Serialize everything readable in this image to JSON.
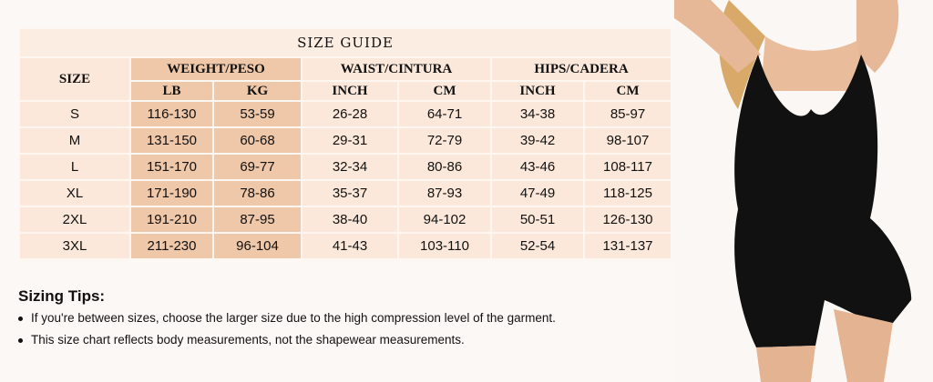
{
  "size_guide": {
    "title": "SIZE GUIDE",
    "size_header": "SIZE",
    "groups": [
      "WEIGHT/PESO",
      "WAIST/CINTURA",
      "HIPS/CADERA"
    ],
    "subheaders": [
      "LB",
      "KG",
      "INCH",
      "CM",
      "INCH",
      "CM"
    ],
    "rows": [
      [
        "S",
        "116-130",
        "53-59",
        "26-28",
        "64-71",
        "34-38",
        "85-97"
      ],
      [
        "M",
        "131-150",
        "60-68",
        "29-31",
        "72-79",
        "39-42",
        "98-107"
      ],
      [
        "L",
        "151-170",
        "69-77",
        "32-34",
        "80-86",
        "43-46",
        "108-117"
      ],
      [
        "XL",
        "171-190",
        "78-86",
        "35-37",
        "87-93",
        "47-49",
        "118-125"
      ],
      [
        "2XL",
        "191-210",
        "87-95",
        "38-40",
        "94-102",
        "50-51",
        "126-130"
      ],
      [
        "3XL",
        "211-230",
        "96-104",
        "41-43",
        "103-110",
        "52-54",
        "131-137"
      ]
    ]
  },
  "tips": {
    "heading": "Sizing Tips:",
    "items": [
      "If you're between sizes, choose the larger size due to the high compression level of the garment.",
      "This size chart reflects body measurements, not the shapewear measurements."
    ]
  },
  "colors": {
    "weight_highlight": "#efc7a9",
    "cell": "#fbe8da",
    "garment": "#111111"
  }
}
